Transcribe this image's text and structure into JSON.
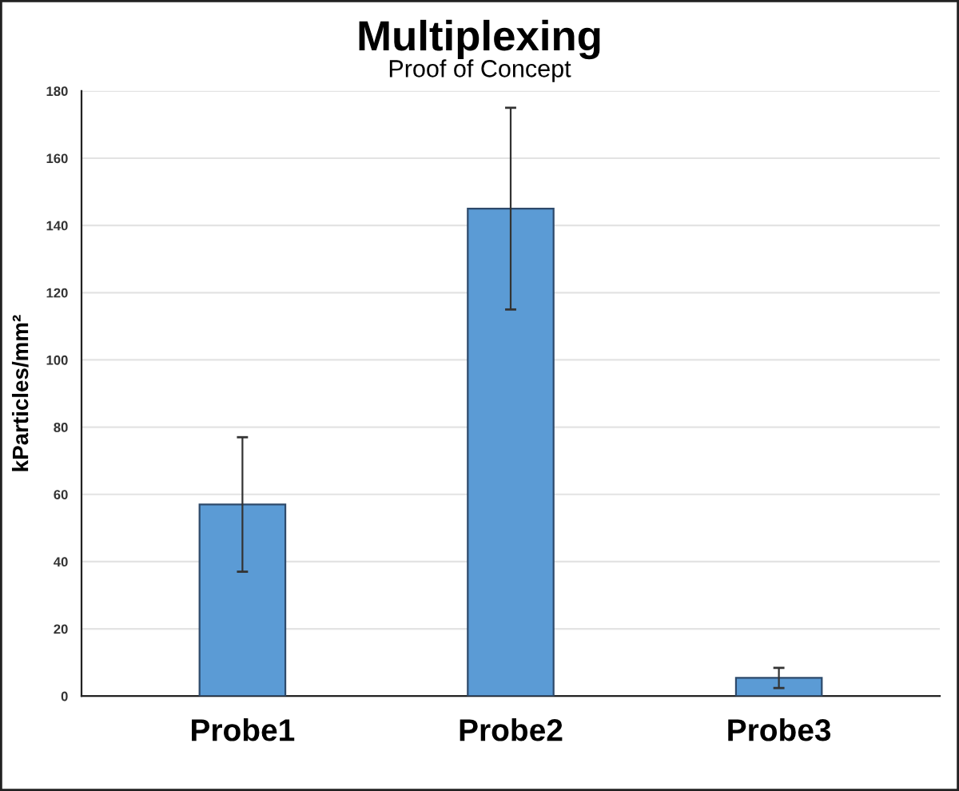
{
  "chart_data": {
    "type": "bar",
    "title": "Multiplexing",
    "subtitle": "Proof of Concept",
    "ylabel": "kParticles/mm²",
    "categories": [
      "Probe1",
      "Probe2",
      "Probe3"
    ],
    "values": [
      57,
      145,
      5.4
    ],
    "errors": [
      20,
      30,
      3
    ],
    "color": "#5b9bd5",
    "ylim": [
      0,
      180
    ],
    "yticks": [
      0,
      20,
      40,
      60,
      80,
      100,
      120,
      140,
      160,
      180
    ],
    "grid": "y",
    "legend": false
  }
}
